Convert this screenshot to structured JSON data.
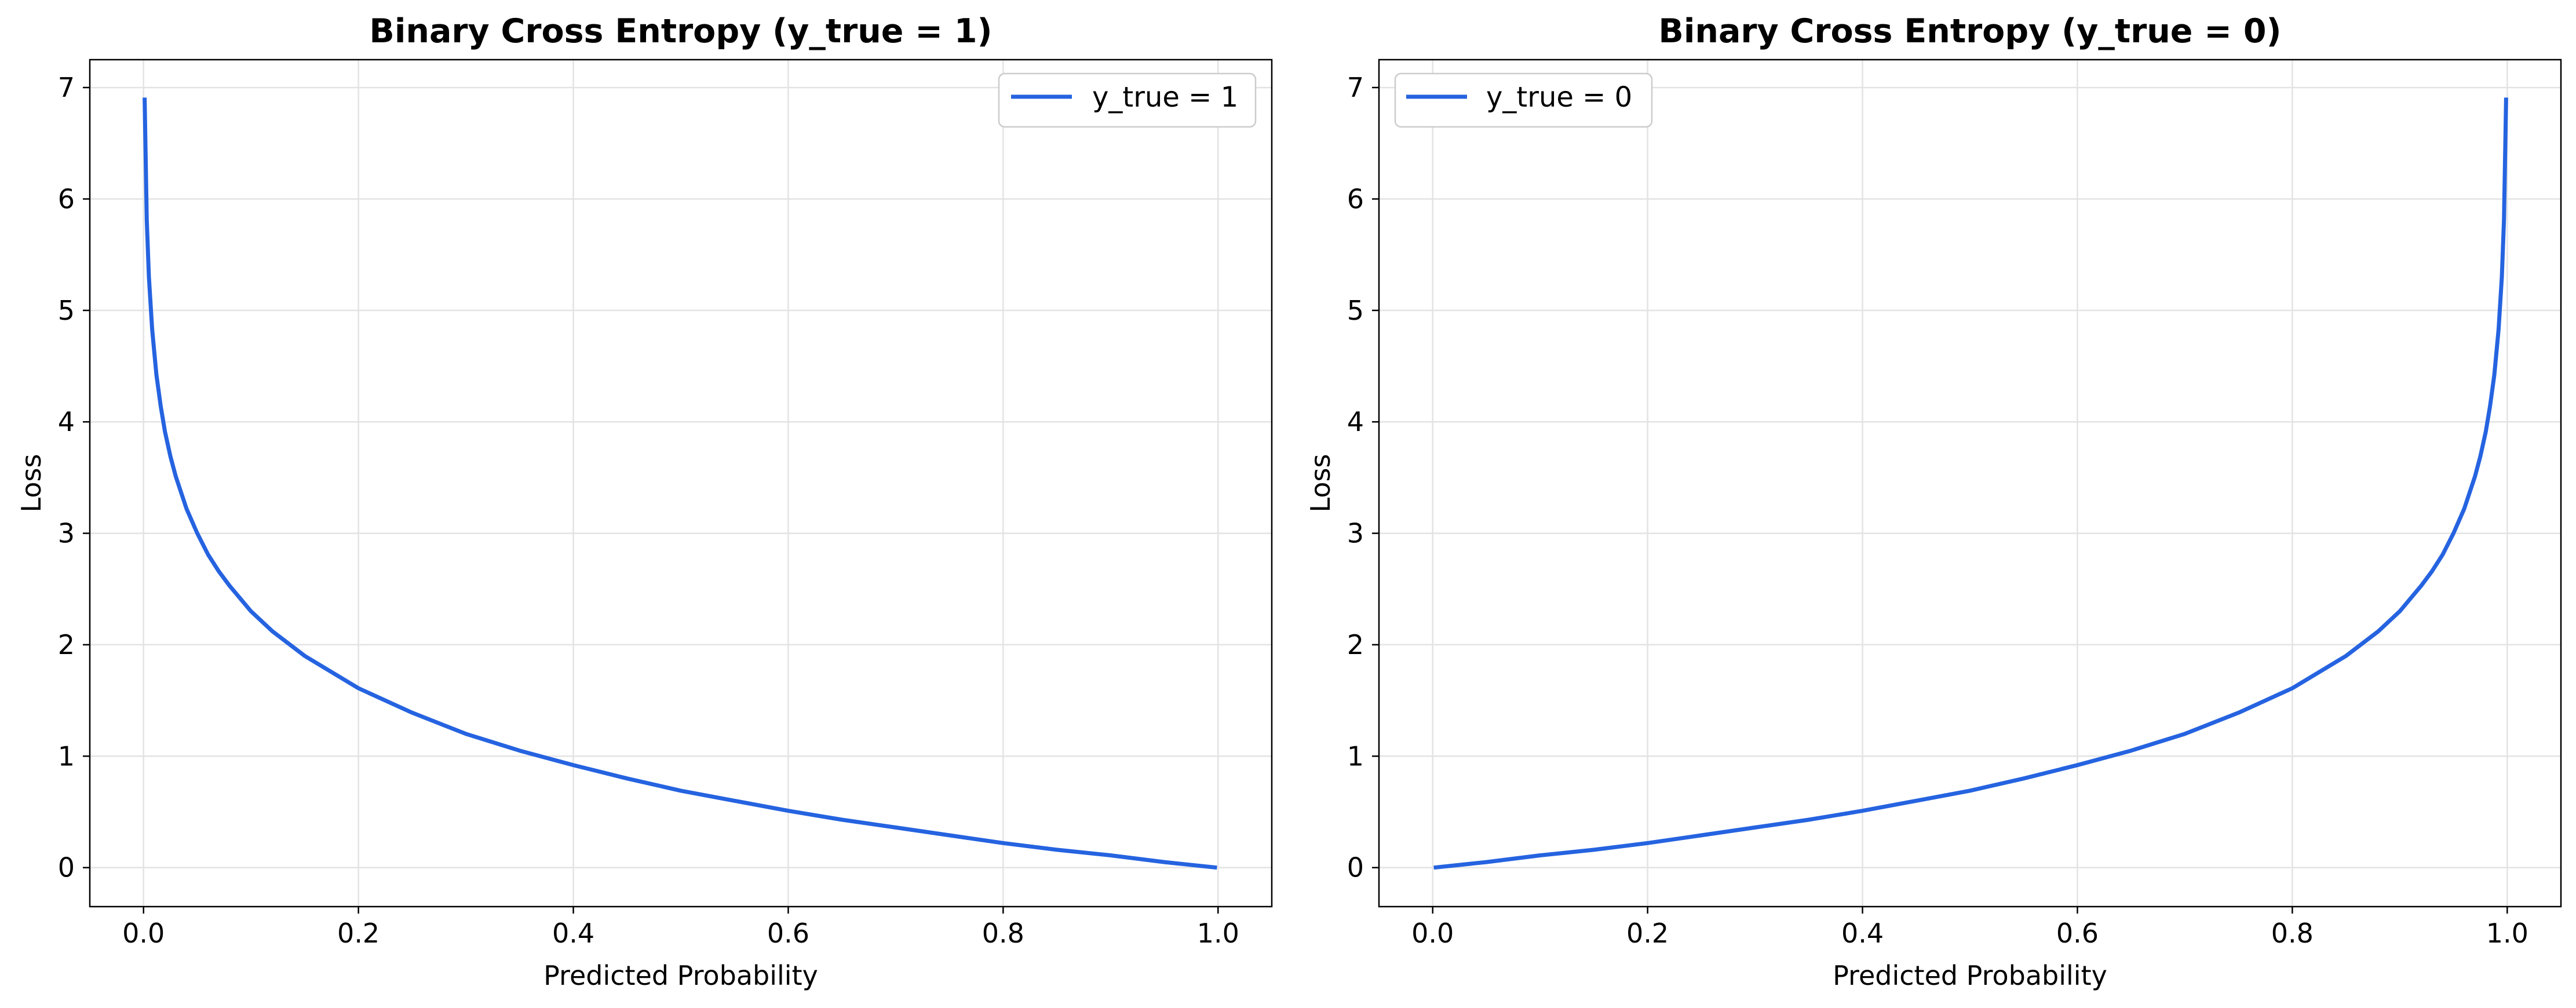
{
  "colors": {
    "line": "#2563e0",
    "grid": "#e3e3e3",
    "axes": "#000000",
    "legend_border": "#cccccc"
  },
  "chart_data": [
    {
      "type": "line",
      "title": "Binary Cross Entropy (y_true = 1)",
      "xlabel": "Predicted Probability",
      "ylabel": "Loss",
      "xlim": [
        -0.05,
        1.05
      ],
      "ylim": [
        -0.35,
        7.25
      ],
      "xticks": [
        0.0,
        0.2,
        0.4,
        0.6,
        0.8,
        1.0
      ],
      "xtick_labels": [
        "0.0",
        "0.2",
        "0.4",
        "0.6",
        "0.8",
        "1.0"
      ],
      "yticks": [
        0,
        1,
        2,
        3,
        4,
        5,
        6,
        7
      ],
      "ytick_labels": [
        "0",
        "1",
        "2",
        "3",
        "4",
        "5",
        "6",
        "7"
      ],
      "grid": true,
      "legend_position": "upper right",
      "series": [
        {
          "name": "y_true = 1",
          "x": [
            0.001,
            0.003,
            0.005,
            0.008,
            0.012,
            0.016,
            0.02,
            0.025,
            0.03,
            0.04,
            0.05,
            0.06,
            0.07,
            0.08,
            0.1,
            0.12,
            0.15,
            0.2,
            0.25,
            0.3,
            0.35,
            0.4,
            0.45,
            0.5,
            0.55,
            0.6,
            0.65,
            0.7,
            0.75,
            0.8,
            0.85,
            0.9,
            0.95,
            0.999
          ],
          "y": [
            6.91,
            5.81,
            5.3,
            4.83,
            4.42,
            4.14,
            3.91,
            3.69,
            3.51,
            3.22,
            3.0,
            2.81,
            2.66,
            2.53,
            2.3,
            2.12,
            1.9,
            1.61,
            1.39,
            1.2,
            1.05,
            0.92,
            0.8,
            0.69,
            0.6,
            0.51,
            0.43,
            0.36,
            0.29,
            0.22,
            0.16,
            0.11,
            0.05,
            0.0
          ]
        }
      ]
    },
    {
      "type": "line",
      "title": "Binary Cross Entropy (y_true = 0)",
      "xlabel": "Predicted Probability",
      "ylabel": "Loss",
      "xlim": [
        -0.05,
        1.05
      ],
      "ylim": [
        -0.35,
        7.25
      ],
      "xticks": [
        0.0,
        0.2,
        0.4,
        0.6,
        0.8,
        1.0
      ],
      "xtick_labels": [
        "0.0",
        "0.2",
        "0.4",
        "0.6",
        "0.8",
        "1.0"
      ],
      "yticks": [
        0,
        1,
        2,
        3,
        4,
        5,
        6,
        7
      ],
      "ytick_labels": [
        "0",
        "1",
        "2",
        "3",
        "4",
        "5",
        "6",
        "7"
      ],
      "grid": true,
      "legend_position": "upper left",
      "series": [
        {
          "name": "y_true = 0",
          "x": [
            0.001,
            0.05,
            0.1,
            0.15,
            0.2,
            0.25,
            0.3,
            0.35,
            0.4,
            0.45,
            0.5,
            0.55,
            0.6,
            0.65,
            0.7,
            0.75,
            0.8,
            0.85,
            0.88,
            0.9,
            0.92,
            0.93,
            0.94,
            0.95,
            0.96,
            0.97,
            0.975,
            0.98,
            0.984,
            0.988,
            0.992,
            0.995,
            0.997,
            0.999
          ],
          "y": [
            0.0,
            0.05,
            0.11,
            0.16,
            0.22,
            0.29,
            0.36,
            0.43,
            0.51,
            0.6,
            0.69,
            0.8,
            0.92,
            1.05,
            1.2,
            1.39,
            1.61,
            1.9,
            2.12,
            2.3,
            2.53,
            2.66,
            2.81,
            3.0,
            3.22,
            3.51,
            3.69,
            3.91,
            4.14,
            4.42,
            4.83,
            5.3,
            5.81,
            6.91
          ]
        }
      ]
    }
  ]
}
